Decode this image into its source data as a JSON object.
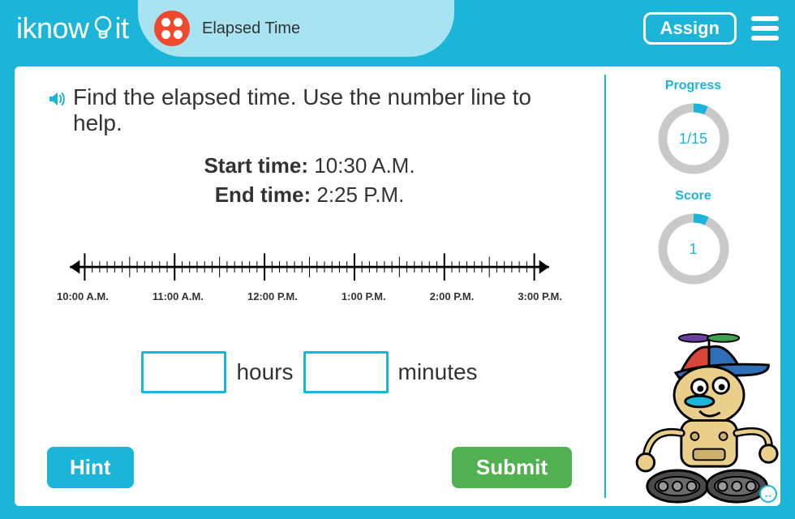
{
  "header": {
    "logo_text_1": "iknow",
    "logo_text_2": "it",
    "lesson_title": "Elapsed Time",
    "assign_label": "Assign"
  },
  "question": {
    "prompt": "Find the elapsed time. Use the number line to help.",
    "start_label": "Start time:",
    "start_value": "10:30 A.M.",
    "end_label": "End time:",
    "end_value": "2:25 P.M."
  },
  "numberline": {
    "major_ticks": 6,
    "minor_per_major": 12,
    "labels": [
      "10:00 A.M.",
      "11:00 A.M.",
      "12:00 P.M.",
      "1:00 P.M.",
      "2:00 P.M.",
      "3:00 P.M."
    ],
    "line_color": "#000000",
    "label_fontsize": 13
  },
  "answer": {
    "hours_label": "hours",
    "minutes_label": "minutes",
    "hours_value": "",
    "minutes_value": ""
  },
  "buttons": {
    "hint": "Hint",
    "submit": "Submit"
  },
  "progress": {
    "label": "Progress",
    "current": 1,
    "total": 15,
    "display": "1/15",
    "ring_color": "#1ab5d8",
    "track_color": "#c9c9c9",
    "ring_width": 11
  },
  "score": {
    "label": "Score",
    "value": 1,
    "fraction": 0.07,
    "ring_color": "#1ab5d8",
    "track_color": "#c9c9c9",
    "ring_width": 11
  },
  "colors": {
    "brand": "#1ab5d8",
    "pill": "#a7e3f0",
    "orange": "#f0492e",
    "green": "#51b151",
    "text": "#333333"
  }
}
